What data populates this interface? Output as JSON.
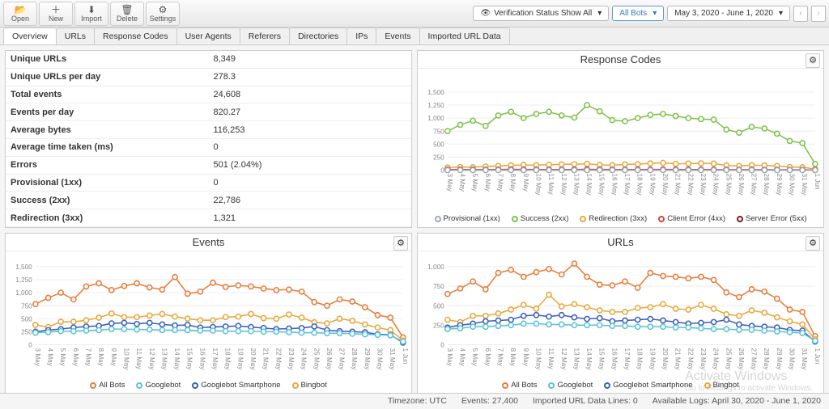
{
  "toolbar": {
    "open": "Open",
    "new": "New",
    "import": "Import",
    "delete": "Delete",
    "settings": "Settings",
    "verification": "Verification Status Show All",
    "bots": "All Bots",
    "daterange": "May 3, 2020 - June 1, 2020"
  },
  "tabs": [
    "Overview",
    "URLs",
    "Response Codes",
    "User Agents",
    "Referers",
    "Directories",
    "IPs",
    "Events",
    "Imported URL Data"
  ],
  "activeTab": 0,
  "stats": [
    [
      "Unique URLs",
      "8,349"
    ],
    [
      "Unique URLs per day",
      "278.3"
    ],
    [
      "Total events",
      "24,608"
    ],
    [
      "Events per day",
      "820.27"
    ],
    [
      "Average bytes",
      "116,253"
    ],
    [
      "Average time taken (ms)",
      "0"
    ],
    [
      "Errors",
      "501 (2.04%)"
    ],
    [
      "Provisional (1xx)",
      "0"
    ],
    [
      "Success (2xx)",
      "22,786"
    ],
    [
      "Redirection (3xx)",
      "1,321"
    ]
  ],
  "panels": {
    "events": "Events",
    "response": "Response Codes",
    "urls": "URLs"
  },
  "colors": {
    "allbots": "#e97c3a",
    "googlebot": "#5bc4d6",
    "gbsmart": "#3a5fbf",
    "bingbot": "#e8a83c",
    "prov": "#9faab5",
    "succ": "#7fc24a",
    "redir": "#e8a83c",
    "cerr": "#d64545",
    "serr": "#7a1a1a",
    "grid": "#eeeeee",
    "axis": "#888888"
  },
  "xlabels": [
    "3 May",
    "4 May",
    "5 May",
    "6 May",
    "7 May",
    "8 May",
    "9 May",
    "10 May",
    "11 May",
    "12 May",
    "13 May",
    "14 May",
    "15 May",
    "16 May",
    "17 May",
    "18 May",
    "19 May",
    "20 May",
    "21 May",
    "22 May",
    "23 May",
    "24 May",
    "25 May",
    "26 May",
    "27 May",
    "28 May",
    "29 May",
    "30 May",
    "31 May",
    "1 Jun"
  ],
  "eventsChart": {
    "ymax": 1500,
    "ystep": 250,
    "series": {
      "allbots": [
        780,
        900,
        1000,
        870,
        1120,
        1180,
        1050,
        1130,
        1180,
        1100,
        1060,
        1300,
        980,
        1020,
        1190,
        1110,
        1140,
        1120,
        1080,
        1050,
        1060,
        1020,
        820,
        750,
        870,
        830,
        720,
        570,
        520,
        140
      ],
      "bingbot": [
        380,
        340,
        440,
        440,
        470,
        520,
        600,
        530,
        530,
        560,
        590,
        540,
        500,
        470,
        470,
        530,
        540,
        590,
        510,
        500,
        580,
        520,
        430,
        410,
        500,
        460,
        390,
        330,
        280,
        80
      ],
      "gbsmart": [
        250,
        280,
        300,
        330,
        350,
        360,
        410,
        420,
        400,
        420,
        390,
        370,
        380,
        330,
        340,
        350,
        360,
        340,
        320,
        300,
        310,
        320,
        350,
        280,
        260,
        250,
        240,
        200,
        190,
        40
      ],
      "googlebot": [
        230,
        240,
        260,
        260,
        270,
        280,
        300,
        300,
        290,
        290,
        280,
        280,
        280,
        270,
        270,
        260,
        260,
        260,
        250,
        250,
        240,
        230,
        230,
        220,
        220,
        210,
        200,
        190,
        180,
        60
      ]
    },
    "legend": [
      [
        "All Bots",
        "allbots"
      ],
      [
        "Googlebot",
        "googlebot"
      ],
      [
        "Googlebot Smartphone",
        "gbsmart"
      ],
      [
        "Bingbot",
        "bingbot"
      ]
    ]
  },
  "responseChart": {
    "ymax": 1500,
    "ystep": 250,
    "series": {
      "succ": [
        750,
        870,
        950,
        850,
        1050,
        1120,
        1000,
        1080,
        1120,
        1050,
        1010,
        1250,
        1130,
        960,
        940,
        1000,
        1060,
        1080,
        1040,
        1000,
        980,
        970,
        780,
        720,
        830,
        800,
        700,
        560,
        520,
        120
      ],
      "redir": [
        50,
        60,
        55,
        70,
        80,
        90,
        100,
        95,
        105,
        110,
        115,
        120,
        100,
        95,
        110,
        115,
        130,
        140,
        120,
        125,
        130,
        125,
        90,
        80,
        95,
        90,
        80,
        60,
        55,
        20
      ],
      "cerr": [
        10,
        12,
        11,
        10,
        12,
        14,
        13,
        12,
        11,
        10,
        12,
        15,
        13,
        12,
        10,
        11,
        12,
        13,
        12,
        11,
        10,
        10,
        9,
        8,
        9,
        8,
        7,
        6,
        6,
        3
      ],
      "serr": [
        2,
        3,
        2,
        2,
        3,
        2,
        2,
        3,
        2,
        2,
        3,
        2,
        2,
        2,
        2,
        3,
        2,
        2,
        2,
        2,
        2,
        2,
        2,
        2,
        2,
        2,
        2,
        2,
        2,
        1
      ],
      "prov": [
        0,
        0,
        0,
        0,
        0,
        0,
        0,
        0,
        0,
        0,
        0,
        0,
        0,
        0,
        0,
        0,
        0,
        0,
        0,
        0,
        0,
        0,
        0,
        0,
        0,
        0,
        0,
        0,
        0,
        0
      ]
    },
    "legend": [
      [
        "Provisional (1xx)",
        "prov"
      ],
      [
        "Success (2xx)",
        "succ"
      ],
      [
        "Redirection (3xx)",
        "redir"
      ],
      [
        "Client Error (4xx)",
        "cerr"
      ],
      [
        "Server Error (5xx)",
        "serr"
      ]
    ]
  },
  "urlsChart": {
    "ymax": 1000,
    "ystep": 250,
    "series": {
      "allbots": [
        650,
        720,
        810,
        710,
        920,
        960,
        870,
        930,
        970,
        900,
        1040,
        870,
        770,
        760,
        810,
        730,
        920,
        880,
        870,
        850,
        870,
        830,
        670,
        610,
        710,
        680,
        590,
        450,
        420,
        110
      ],
      "bingbot": [
        320,
        290,
        370,
        370,
        400,
        450,
        510,
        460,
        640,
        490,
        520,
        480,
        440,
        420,
        420,
        470,
        480,
        520,
        460,
        450,
        510,
        460,
        390,
        370,
        440,
        410,
        350,
        300,
        260,
        70
      ],
      "gbsmart": [
        220,
        250,
        270,
        300,
        310,
        320,
        370,
        380,
        360,
        380,
        350,
        330,
        340,
        300,
        310,
        320,
        330,
        310,
        290,
        270,
        280,
        290,
        320,
        260,
        240,
        230,
        220,
        190,
        180,
        40
      ],
      "googlebot": [
        200,
        210,
        230,
        230,
        240,
        250,
        270,
        270,
        260,
        260,
        250,
        250,
        250,
        240,
        240,
        230,
        230,
        230,
        220,
        220,
        210,
        200,
        200,
        190,
        190,
        180,
        170,
        160,
        150,
        50
      ]
    },
    "legend": [
      [
        "All Bots",
        "allbots"
      ],
      [
        "Googlebot",
        "googlebot"
      ],
      [
        "Googlebot Smartphone",
        "gbsmart"
      ],
      [
        "Bingbot",
        "bingbot"
      ]
    ]
  },
  "status": {
    "tz": "Timezone:  UTC",
    "events": "Events:  27,400",
    "imported": "Imported URL Data Lines:  0",
    "logs": "Available Logs:  April 30, 2020 - June 1, 2020"
  },
  "watermark": {
    "l1": "Activate Windows",
    "l2": "Go to Settings to activate Windows."
  }
}
